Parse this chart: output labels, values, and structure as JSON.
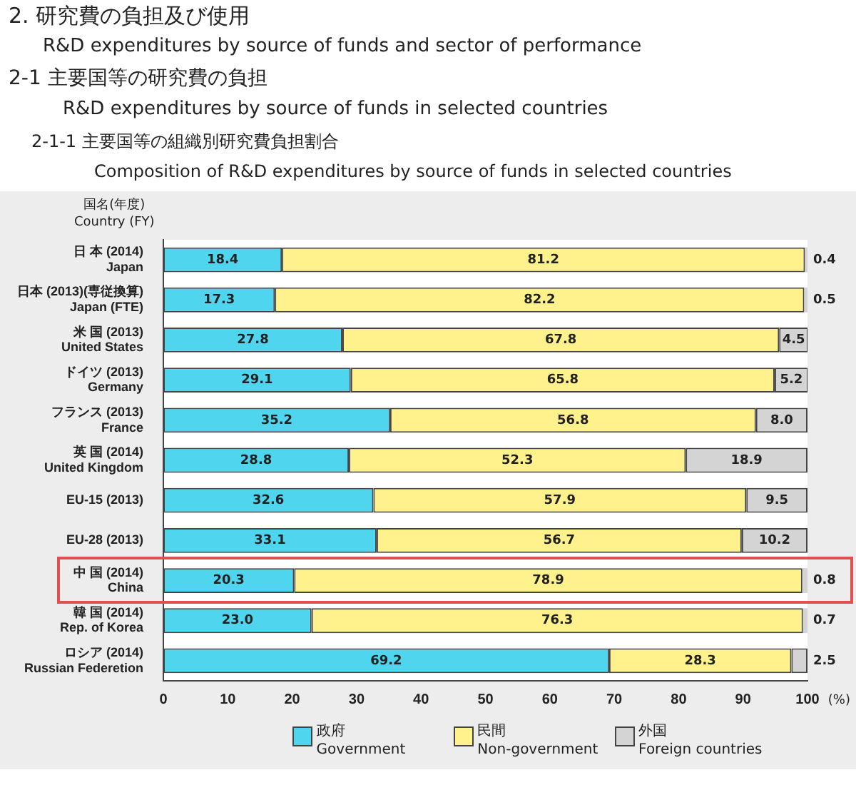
{
  "chart_data": {
    "type": "bar",
    "orientation": "horizontal",
    "stacked": true,
    "annotations": [
      "2.  研究費の負担及び使用",
      "R&D expenditures by source of funds and sector of performance",
      "2-1   主要国等の研究費の負担",
      "R&D expenditures by source of funds in selected countries"
    ],
    "title": "2-1-1   主要国等の組織別研究費負担割合",
    "subtitle": "Composition of R&D expenditures by source of funds in selected countries",
    "ylabel": "国名(年度)\nCountry (FY)",
    "xlabel": "(%)",
    "categories": [
      "日 本 (2014)\nJapan",
      "日本 (2013)(専従換算)\nJapan (FTE)",
      "米 国 (2013)\nUnited States",
      "ドイツ (2013)\nGermany",
      "フランス (2013)\nFrance",
      "英 国 (2014)\nUnited Kingdom",
      "EU-15 (2013)",
      "EU-28 (2013)",
      "中 国 (2014)\nChina",
      "韓 国 (2014)\nRep. of Korea",
      "ロシア (2014)\nRussian Federetion"
    ],
    "series": [
      {
        "name": "政府\nGovernment",
        "color": "#4fd6ee",
        "values": [
          18.4,
          17.3,
          27.8,
          29.1,
          35.2,
          28.8,
          32.6,
          33.1,
          20.3,
          23.0,
          69.2
        ],
        "value_labels": [
          "18.4",
          "17.3",
          "27.8",
          "29.1",
          "35.2",
          "28.8",
          "32.6",
          "33.1",
          "20.3",
          "23.0",
          "69.2"
        ]
      },
      {
        "name": "民間\nNon-government",
        "color": "#fff28c",
        "values": [
          81.2,
          82.2,
          67.8,
          65.8,
          56.8,
          52.3,
          57.9,
          56.7,
          78.9,
          76.3,
          28.3
        ],
        "value_labels": [
          "81.2",
          "82.2",
          "67.8",
          "65.8",
          "56.8",
          "52.3",
          "57.9",
          "56.7",
          "78.9",
          "76.3",
          "28.3"
        ]
      },
      {
        "name": "外国\nForeign countries",
        "color": "#d4d4d4",
        "values": [
          0.4,
          0.5,
          4.5,
          5.2,
          8.0,
          18.9,
          9.5,
          10.2,
          0.8,
          0.7,
          2.5
        ],
        "value_labels": [
          "0.4",
          "0.5",
          "4.5",
          "5.2",
          "8.0",
          "18.9",
          "9.5",
          "10.2",
          "0.8",
          "0.7",
          "2.5"
        ]
      }
    ],
    "xlim": [
      0,
      100
    ],
    "xticks": [
      0,
      10,
      20,
      30,
      40,
      50,
      60,
      70,
      80,
      90,
      100
    ],
    "grid": false,
    "legend": "bottom"
  }
}
